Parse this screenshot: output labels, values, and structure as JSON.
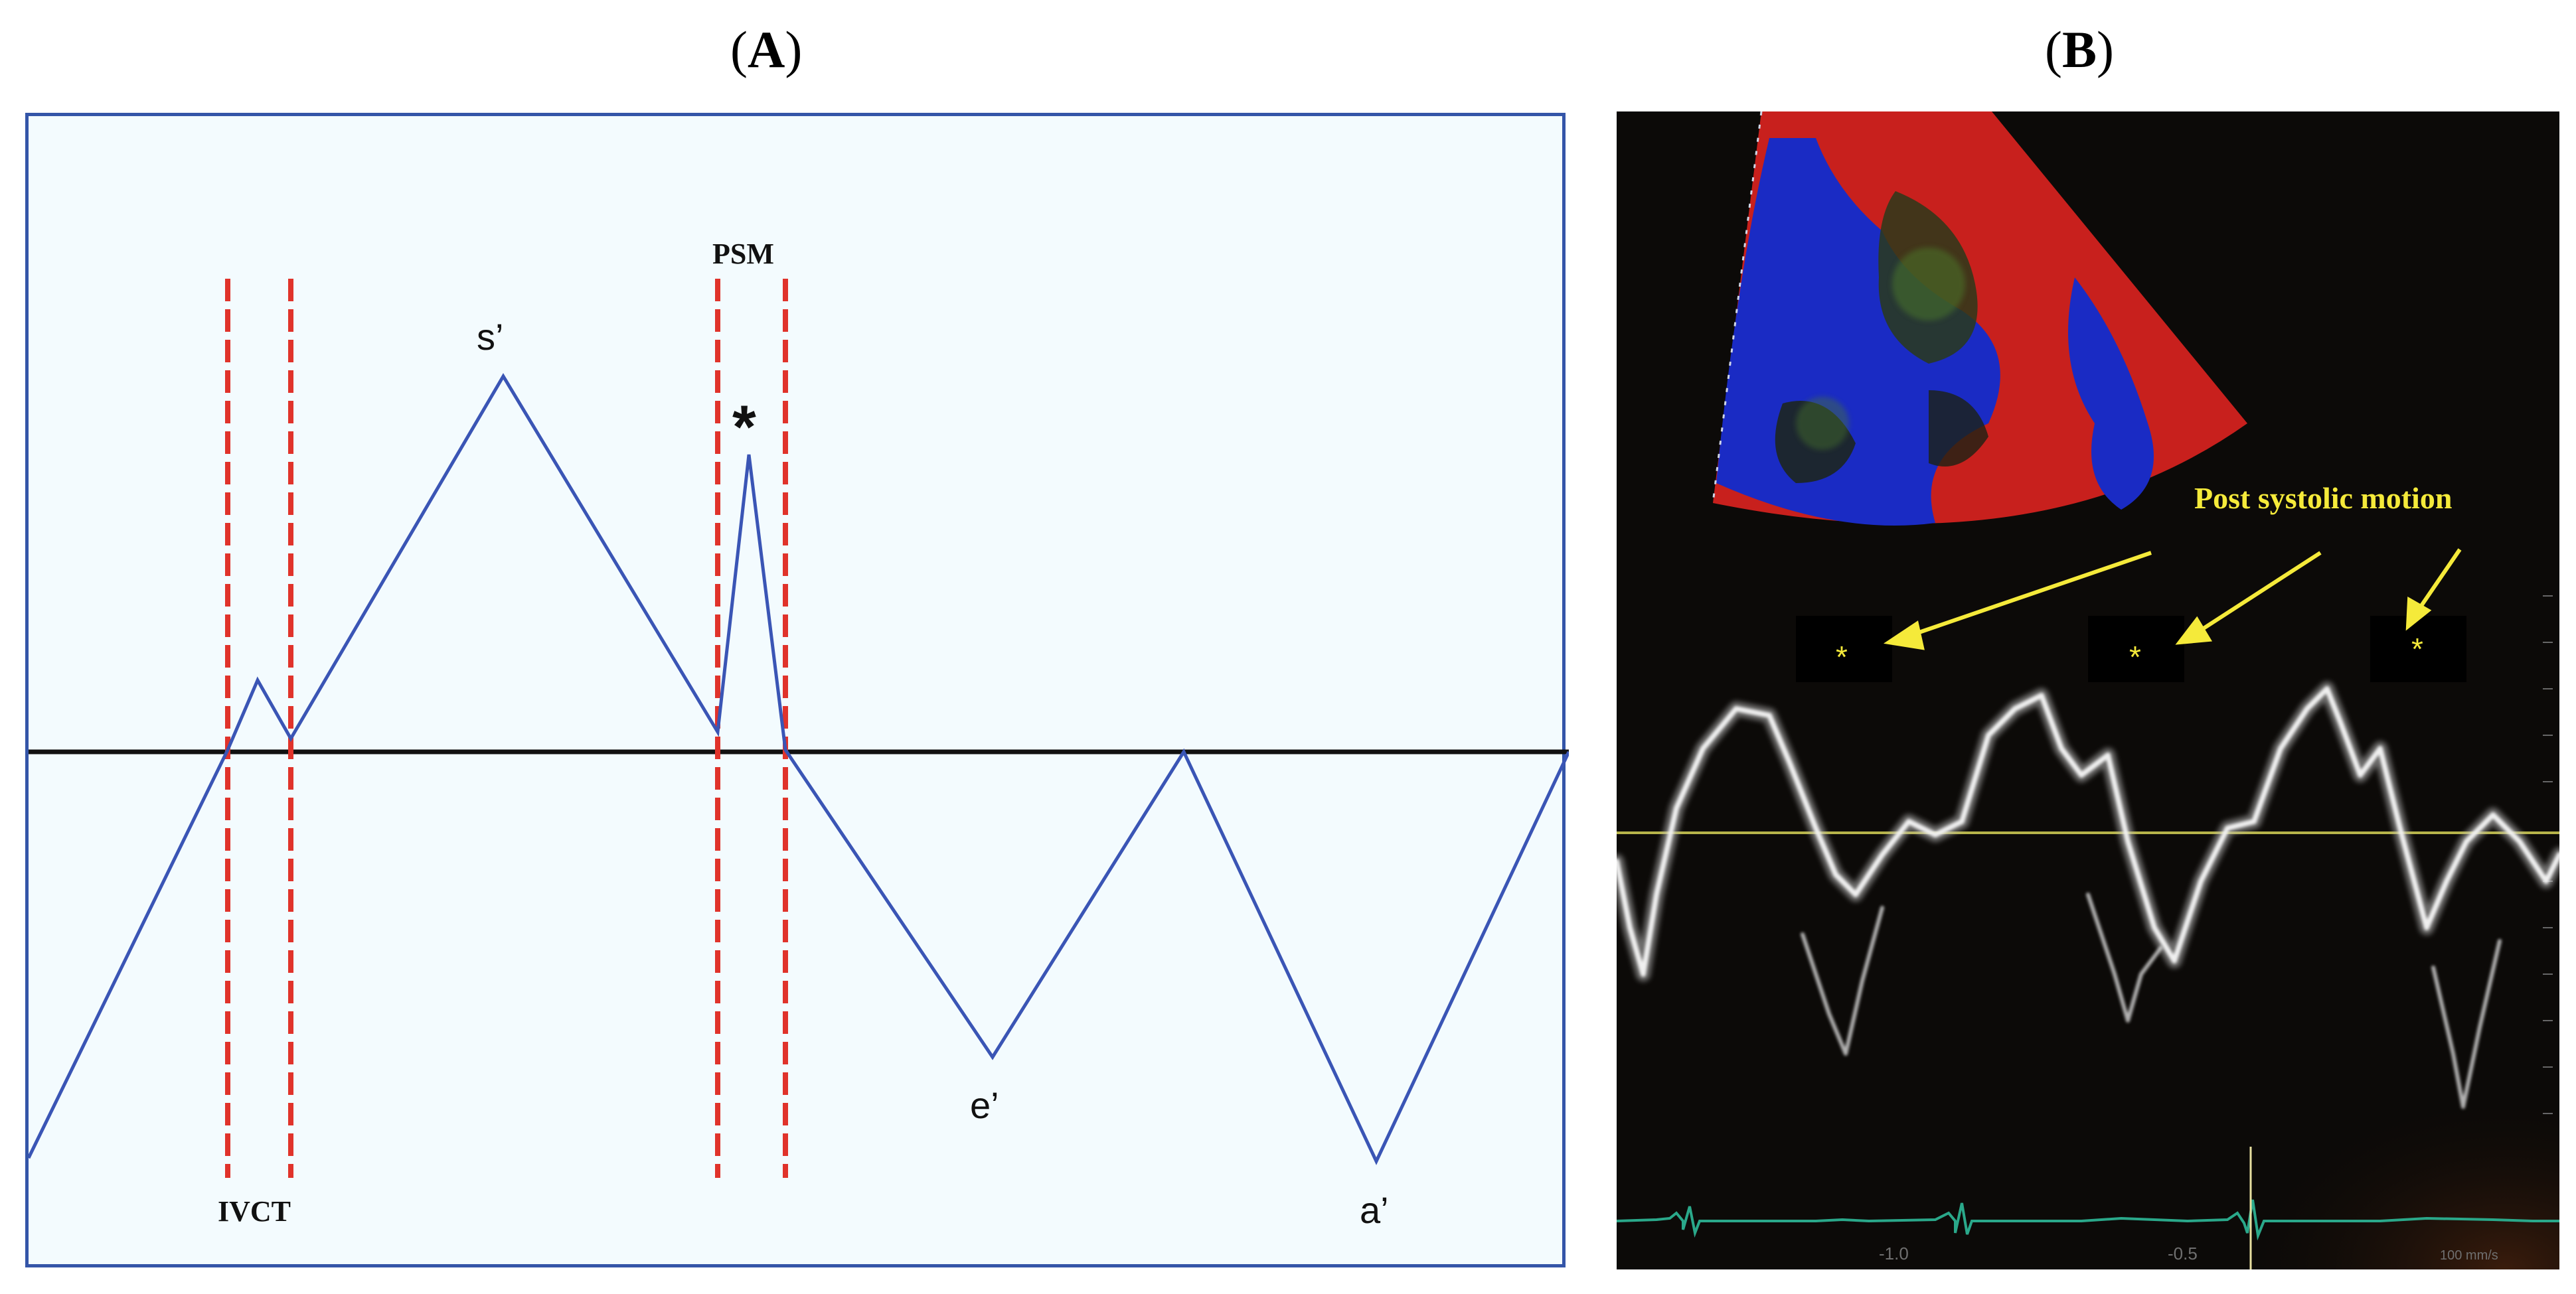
{
  "panel_a": {
    "title_letter": "A",
    "labels": {
      "s_prime": "s’",
      "e_prime": "e’",
      "a_prime": "a’",
      "asterisk": "*",
      "psm": "PSM",
      "ivct": "IVCT"
    },
    "colors": {
      "waveform": "#3a55b5",
      "guides": "#e0332b",
      "baseline": "#111111",
      "border": "#3455a8"
    }
  },
  "panel_b": {
    "title_letter": "B",
    "annotation": "Post systolic motion",
    "asterisks": [
      "*",
      "*",
      "*"
    ],
    "axis_ticks": [
      "-1.0",
      "-0.5",
      "100 mm/s"
    ],
    "colors": {
      "annotation": "#f5ea3a",
      "trace": "#e6e6e6",
      "ecg": "#2aa88a",
      "background": "#0c0a08"
    }
  }
}
